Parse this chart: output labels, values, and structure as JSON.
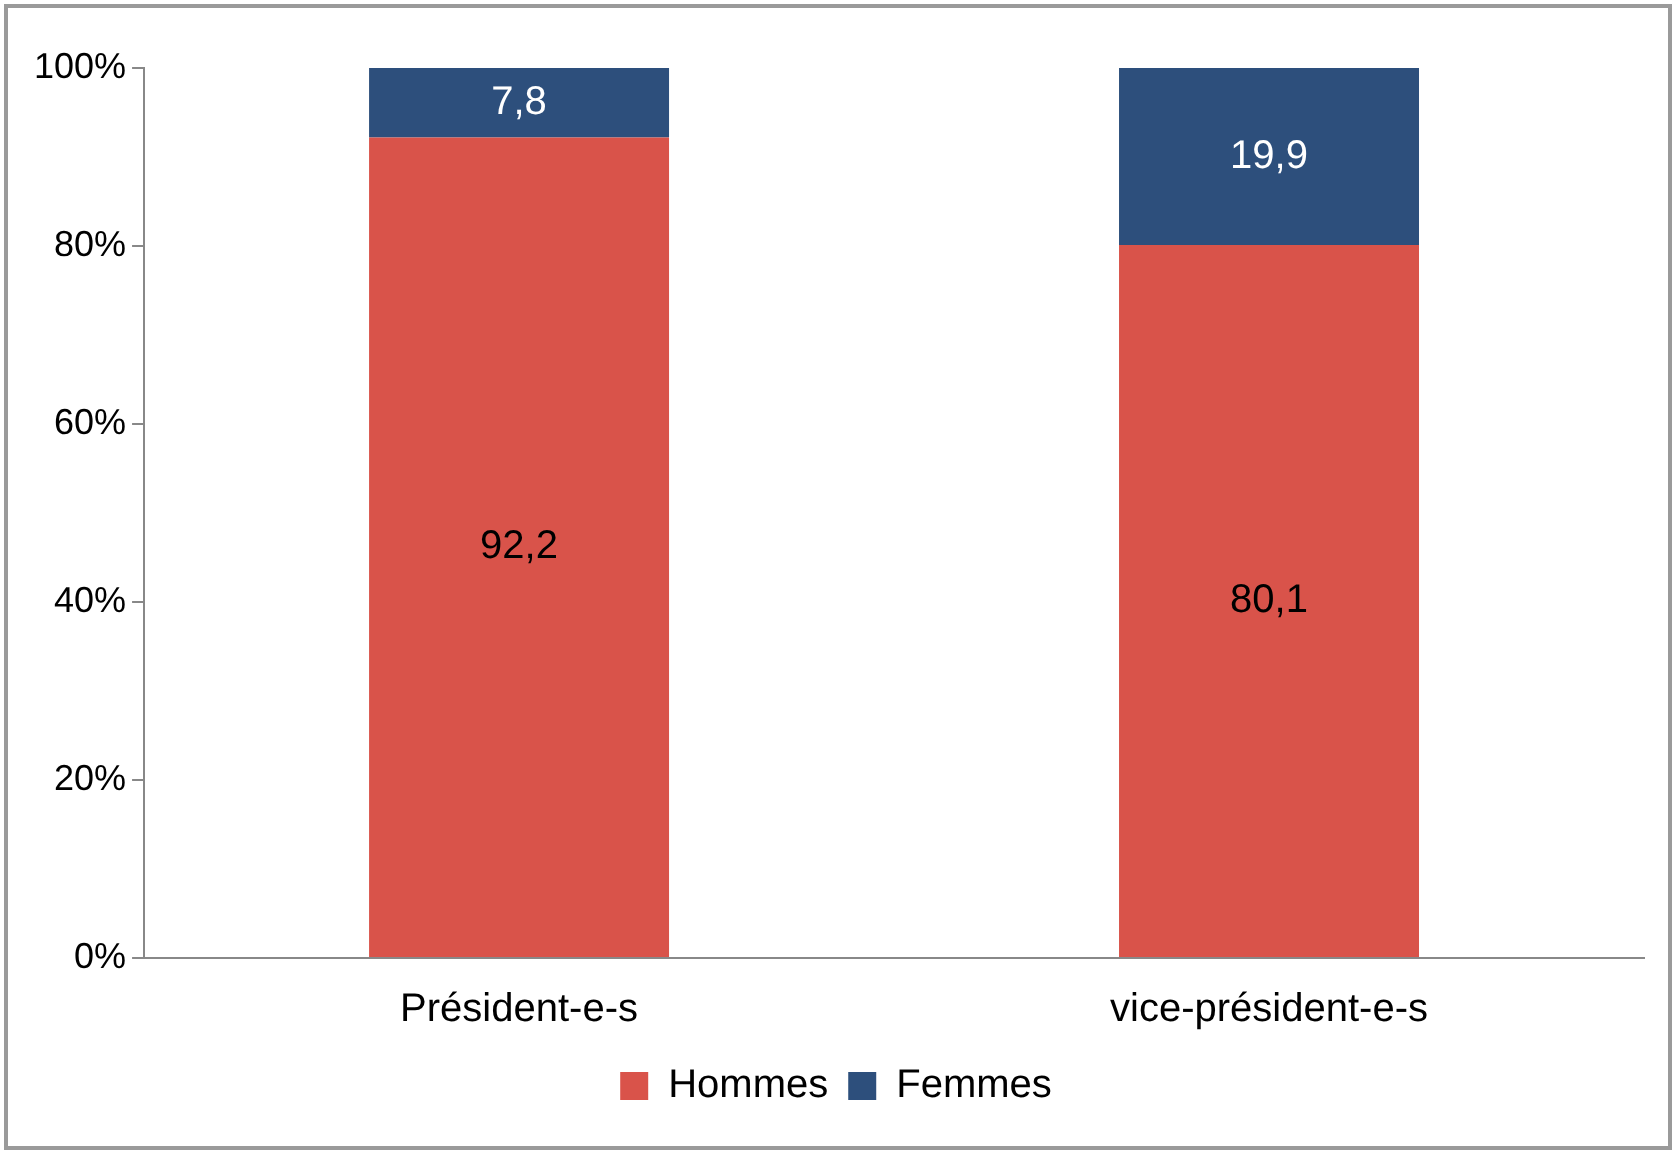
{
  "chart_data": {
    "type": "bar",
    "stacked": true,
    "categories": [
      "Président-e-s",
      "vice-président-e-s"
    ],
    "series": [
      {
        "name": "Hommes",
        "color": "#d9534a",
        "values": [
          92.2,
          80.1
        ],
        "value_labels": [
          "92,2",
          "80,1"
        ]
      },
      {
        "name": "Femmes",
        "color": "#2d4f7c",
        "values": [
          7.8,
          19.9
        ],
        "value_labels": [
          "7,8",
          "19,9"
        ]
      }
    ],
    "ylim": [
      0,
      100
    ],
    "yticks": [
      {
        "value": 0,
        "label": "0%"
      },
      {
        "value": 20,
        "label": "20%"
      },
      {
        "value": 40,
        "label": "40%"
      },
      {
        "value": 60,
        "label": "60%"
      },
      {
        "value": 80,
        "label": "80%"
      },
      {
        "value": 100,
        "label": "100%"
      }
    ],
    "grid": false,
    "legend": "bottom"
  }
}
